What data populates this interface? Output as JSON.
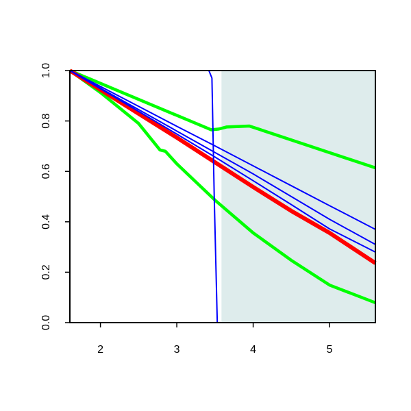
{
  "chart_data": {
    "type": "line",
    "xlim": [
      1.6,
      5.6
    ],
    "ylim": [
      0,
      1
    ],
    "xticks": [
      2,
      3,
      4,
      5
    ],
    "yticks": [
      {
        "value": 0,
        "label": "0.0"
      },
      {
        "value": 0.2,
        "label": "0.2"
      },
      {
        "value": 0.4,
        "label": "0.4"
      },
      {
        "value": 0.6,
        "label": "0.6"
      },
      {
        "value": 0.8,
        "label": "0.8"
      },
      {
        "value": 1,
        "label": "1.0"
      }
    ],
    "shaded_region": {
      "xmin": 3.585,
      "xmax": 5.6,
      "color": "#deecec"
    },
    "series": [
      {
        "color": "#00ff00",
        "width": 4.5,
        "x": [
          1.6,
          3.45,
          3.55,
          3.65,
          3.95,
          5.6
        ],
        "values": [
          1,
          0.765,
          0.768,
          0.776,
          0.78,
          0.614
        ]
      },
      {
        "color": "#00ff00",
        "width": 4.5,
        "x": [
          1.6,
          2,
          2.5,
          2.78,
          2.85,
          3,
          3.5,
          4,
          4.5,
          5,
          5.6
        ],
        "values": [
          1,
          0.913,
          0.79,
          0.685,
          0.68,
          0.63,
          0.486,
          0.356,
          0.247,
          0.149,
          0.079
        ]
      },
      {
        "color": "#ff0000",
        "width": 6,
        "x": [
          1.6,
          2,
          2.5,
          3,
          3.5,
          4,
          4.5,
          5,
          5.6
        ],
        "values": [
          1,
          0.924,
          0.829,
          0.734,
          0.636,
          0.538,
          0.443,
          0.356,
          0.236
        ]
      },
      {
        "color": "#0000ff",
        "width": 2,
        "x": [
          1.6,
          2,
          2.5,
          3,
          3.5,
          4,
          4.5,
          5,
          5.6
        ],
        "values": [
          1,
          0.937,
          0.858,
          0.779,
          0.701,
          0.622,
          0.543,
          0.464,
          0.37
        ]
      },
      {
        "color": "#0000ff",
        "width": 2,
        "x": [
          1.6,
          2,
          2.5,
          3,
          3.5,
          4,
          4.5,
          5,
          5.6
        ],
        "values": [
          1,
          0.93,
          0.845,
          0.76,
          0.675,
          0.59,
          0.5,
          0.41,
          0.31
        ]
      },
      {
        "color": "#0000ff",
        "width": 2,
        "x": [
          1.6,
          2,
          2.5,
          3,
          3.5,
          4,
          4.5,
          5,
          5.6
        ],
        "values": [
          1,
          0.928,
          0.838,
          0.748,
          0.657,
          0.563,
          0.468,
          0.372,
          0.28
        ]
      },
      {
        "color": "#0000ff",
        "width": 2,
        "x": [
          1.6,
          3.42,
          3.46,
          3.49,
          3.53,
          5.6
        ],
        "values": [
          1,
          1,
          0.97,
          0.5,
          0,
          0
        ]
      }
    ]
  }
}
